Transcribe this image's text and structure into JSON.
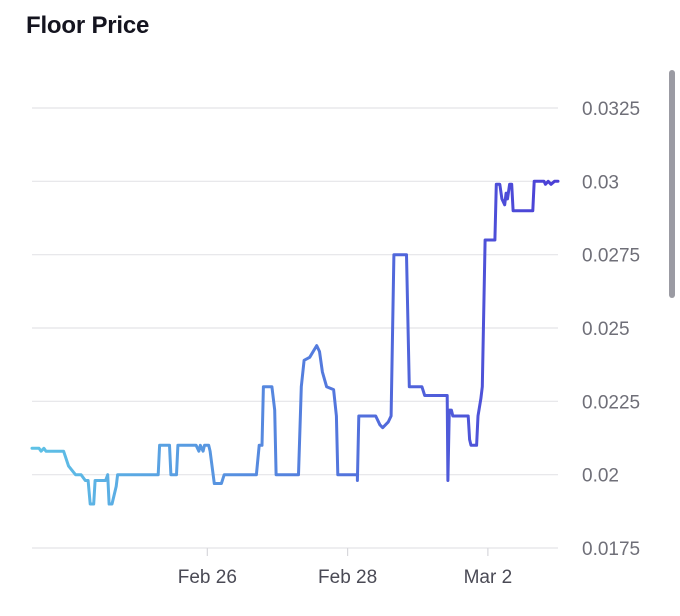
{
  "title": "Floor Price",
  "chart_data": {
    "type": "line",
    "title": "Floor Price",
    "xlabel": "",
    "ylabel": "",
    "ylim": [
      0.0175,
      0.0325
    ],
    "yticks": [
      "0.0325",
      "0.03",
      "0.0275",
      "0.025",
      "0.0225",
      "0.02",
      "0.0175"
    ],
    "xticks": [
      {
        "label": "Feb 26",
        "x": 2.5
      },
      {
        "label": "Feb 28",
        "x": 4.5
      },
      {
        "label": "Mar 2",
        "x": 6.5
      }
    ],
    "xlim": [
      0.0,
      7.5
    ],
    "grid": true,
    "gradient": [
      "#5ec2e6",
      "#4b3fd6"
    ],
    "series": [
      {
        "values": [
          [
            0.0,
            0.0209
          ],
          [
            0.1,
            0.0209
          ],
          [
            0.13,
            0.0208
          ],
          [
            0.17,
            0.0209
          ],
          [
            0.2,
            0.0208
          ],
          [
            0.45,
            0.0208
          ],
          [
            0.52,
            0.0203
          ],
          [
            0.62,
            0.02
          ],
          [
            0.7,
            0.02
          ],
          [
            0.76,
            0.0198
          ],
          [
            0.8,
            0.0198
          ],
          [
            0.83,
            0.019
          ],
          [
            0.88,
            0.019
          ],
          [
            0.9,
            0.0198
          ],
          [
            1.05,
            0.0198
          ],
          [
            1.08,
            0.02
          ],
          [
            1.1,
            0.019
          ],
          [
            1.14,
            0.019
          ],
          [
            1.2,
            0.0196
          ],
          [
            1.22,
            0.02
          ],
          [
            1.8,
            0.02
          ],
          [
            1.82,
            0.021
          ],
          [
            1.96,
            0.021
          ],
          [
            1.98,
            0.02
          ],
          [
            2.06,
            0.02
          ],
          [
            2.08,
            0.021
          ],
          [
            2.34,
            0.021
          ],
          [
            2.38,
            0.0208
          ],
          [
            2.4,
            0.021
          ],
          [
            2.44,
            0.0208
          ],
          [
            2.46,
            0.021
          ],
          [
            2.52,
            0.021
          ],
          [
            2.54,
            0.0208
          ],
          [
            2.6,
            0.0197
          ],
          [
            2.7,
            0.0197
          ],
          [
            2.74,
            0.02
          ],
          [
            3.2,
            0.02
          ],
          [
            3.24,
            0.021
          ],
          [
            3.28,
            0.021
          ],
          [
            3.3,
            0.023
          ],
          [
            3.42,
            0.023
          ],
          [
            3.46,
            0.0222
          ],
          [
            3.48,
            0.02
          ],
          [
            3.8,
            0.02
          ],
          [
            3.84,
            0.023
          ],
          [
            3.88,
            0.0239
          ],
          [
            3.96,
            0.024
          ],
          [
            4.06,
            0.0244
          ],
          [
            4.1,
            0.0242
          ],
          [
            4.14,
            0.0235
          ],
          [
            4.2,
            0.023
          ],
          [
            4.3,
            0.0229
          ],
          [
            4.34,
            0.022
          ],
          [
            4.36,
            0.02
          ],
          [
            4.64,
            0.02
          ],
          [
            4.64,
            0.0198
          ],
          [
            4.66,
            0.022
          ],
          [
            4.9,
            0.022
          ],
          [
            4.96,
            0.0217
          ],
          [
            5.0,
            0.0216
          ],
          [
            5.08,
            0.0218
          ],
          [
            5.12,
            0.022
          ],
          [
            5.16,
            0.0275
          ],
          [
            5.34,
            0.0275
          ],
          [
            5.38,
            0.023
          ],
          [
            5.56,
            0.023
          ],
          [
            5.6,
            0.0227
          ],
          [
            5.92,
            0.0227
          ],
          [
            5.93,
            0.0198
          ],
          [
            5.95,
            0.0222
          ],
          [
            5.98,
            0.0222
          ],
          [
            6.0,
            0.022
          ],
          [
            6.22,
            0.022
          ],
          [
            6.24,
            0.0212
          ],
          [
            6.26,
            0.021
          ],
          [
            6.34,
            0.021
          ],
          [
            6.36,
            0.022
          ],
          [
            6.4,
            0.0226
          ],
          [
            6.42,
            0.023
          ],
          [
            6.46,
            0.028
          ],
          [
            6.6,
            0.028
          ],
          [
            6.62,
            0.0299
          ],
          [
            6.67,
            0.0299
          ],
          [
            6.7,
            0.0294
          ],
          [
            6.74,
            0.0292
          ],
          [
            6.76,
            0.0296
          ],
          [
            6.78,
            0.0294
          ],
          [
            6.81,
            0.0299
          ],
          [
            6.84,
            0.0299
          ],
          [
            6.86,
            0.029
          ],
          [
            7.14,
            0.029
          ],
          [
            7.16,
            0.03
          ],
          [
            7.3,
            0.03
          ],
          [
            7.32,
            0.0299
          ],
          [
            7.36,
            0.03
          ],
          [
            7.4,
            0.0299
          ],
          [
            7.45,
            0.03
          ],
          [
            7.5,
            0.03
          ]
        ]
      }
    ]
  }
}
